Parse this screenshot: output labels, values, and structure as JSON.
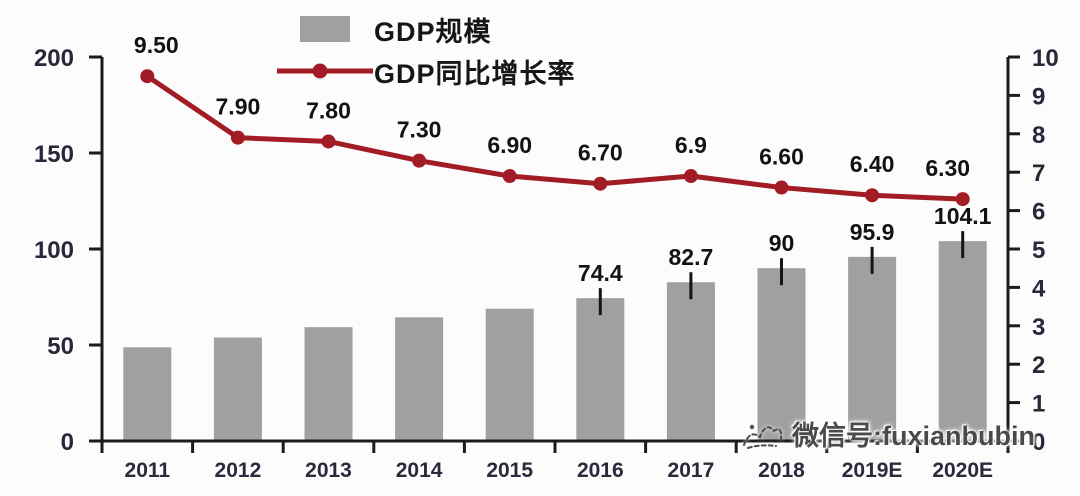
{
  "watermark": {
    "text": "微信号:fuxianbubin"
  },
  "chart_data": {
    "type": "combo",
    "title": "",
    "categories": [
      "2011",
      "2012",
      "2013",
      "2014",
      "2015",
      "2016",
      "2017",
      "2018",
      "2019E",
      "2020E"
    ],
    "italic_categories": [
      "2019E",
      "2020E"
    ],
    "series": [
      {
        "name": "GDP规模",
        "type": "bar",
        "axis": "left",
        "color": "#a0a0a0",
        "values": [
          48.8,
          53.9,
          59.3,
          64.4,
          68.9,
          74.4,
          82.7,
          90,
          95.9,
          104.1
        ],
        "labels": [
          "",
          "",
          "",
          "",
          "",
          "74.4",
          "82.7",
          "90",
          "95.9",
          "104.1"
        ]
      },
      {
        "name": "GDP同比增长率",
        "type": "line",
        "axis": "right",
        "color": "#a11c24",
        "values": [
          9.5,
          7.9,
          7.8,
          7.3,
          6.9,
          6.7,
          6.9,
          6.6,
          6.4,
          6.3
        ],
        "labels": [
          "9.50",
          "7.90",
          "7.80",
          "7.30",
          "6.90",
          "6.70",
          "6.9",
          "6.60",
          "6.40",
          "6.30"
        ]
      }
    ],
    "left_axis": {
      "min": 0,
      "max": 200,
      "ticks": [
        0,
        50,
        100,
        150,
        200
      ]
    },
    "right_axis": {
      "min": 0,
      "max": 10,
      "ticks": [
        0,
        1,
        2,
        3,
        4,
        5,
        6,
        7,
        8,
        9,
        10
      ]
    },
    "legend_position": "top",
    "grid": false,
    "axis_color": "#1b1b1b",
    "tick_label_color": "#28283a",
    "data_label_color": "#121212",
    "leader_line_color": "#151515"
  }
}
